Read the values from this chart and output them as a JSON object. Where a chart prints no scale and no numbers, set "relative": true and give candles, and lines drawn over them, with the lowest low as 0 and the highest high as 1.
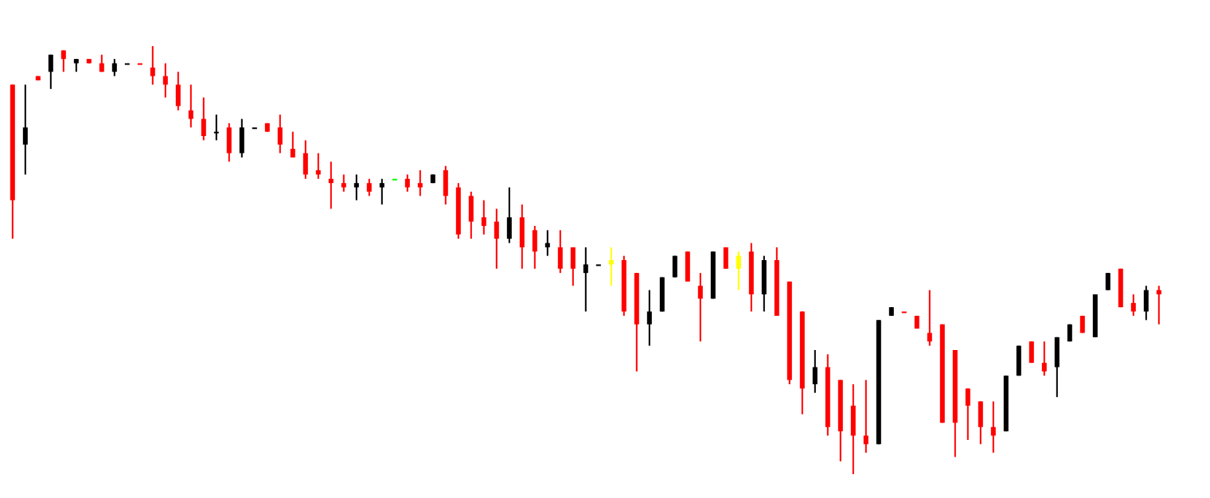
{
  "chart_data": {
    "type": "candlestick",
    "relative": true,
    "categories": [
      null,
      null,
      null,
      null,
      null,
      null,
      null,
      null,
      null,
      null,
      null,
      null,
      null,
      null,
      null,
      null,
      null,
      null,
      null,
      null,
      null,
      null,
      null,
      null,
      null,
      null,
      null,
      null,
      null,
      null,
      null,
      null,
      null,
      null,
      null,
      null,
      null,
      null,
      null,
      null,
      null,
      null,
      null,
      null,
      null,
      null,
      null,
      null,
      null,
      null,
      null,
      null,
      null,
      null,
      null,
      null,
      null,
      null,
      null,
      null,
      null,
      null,
      null,
      null,
      null,
      null,
      null,
      null,
      null,
      null,
      null,
      null,
      null,
      null,
      null,
      null,
      null,
      null,
      null,
      null,
      null,
      null,
      null,
      null,
      null,
      null,
      null,
      null,
      null,
      null,
      null
    ],
    "ohlc": [
      [
        0.91,
        0.91,
        0.55,
        0.64
      ],
      [
        0.77,
        0.91,
        0.7,
        0.81
      ],
      [
        0.93,
        0.93,
        0.92,
        0.92
      ],
      [
        0.94,
        0.98,
        0.9,
        0.98
      ],
      [
        0.99,
        0.99,
        0.94,
        0.97
      ],
      [
        0.96,
        0.97,
        0.94,
        0.97
      ],
      [
        0.97,
        0.97,
        0.96,
        0.96
      ],
      [
        0.96,
        0.98,
        0.94,
        0.94
      ],
      [
        0.94,
        0.97,
        0.93,
        0.96
      ],
      [
        0.96,
        0.96,
        0.96,
        0.96
      ],
      [
        0.96,
        0.96,
        0.96,
        0.96
      ],
      [
        0.95,
        1,
        0.91,
        0.93
      ],
      [
        0.93,
        0.96,
        0.88,
        0.91
      ],
      [
        0.91,
        0.94,
        0.85,
        0.86
      ],
      [
        0.85,
        0.91,
        0.81,
        0.83
      ],
      [
        0.83,
        0.88,
        0.78,
        0.79
      ],
      [
        0.8,
        0.84,
        0.78,
        0.8
      ],
      [
        0.81,
        0.82,
        0.73,
        0.75
      ],
      [
        0.75,
        0.83,
        0.74,
        0.81
      ],
      [
        0.81,
        0.81,
        0.81,
        0.81
      ],
      [
        0.82,
        0.82,
        0.8,
        0.8
      ],
      [
        0.81,
        0.84,
        0.75,
        0.77
      ],
      [
        0.76,
        0.8,
        0.74,
        0.74
      ],
      [
        0.75,
        0.78,
        0.69,
        0.7
      ],
      [
        0.71,
        0.75,
        0.69,
        0.7
      ],
      [
        0.69,
        0.73,
        0.62,
        0.68
      ],
      [
        0.68,
        0.7,
        0.66,
        0.67
      ],
      [
        0.67,
        0.7,
        0.64,
        0.68
      ],
      [
        0.68,
        0.69,
        0.65,
        0.66
      ],
      [
        0.67,
        0.69,
        0.63,
        0.68
      ],
      [
        0.69,
        0.69,
        0.69,
        0.69
      ],
      [
        0.69,
        0.7,
        0.66,
        0.67
      ],
      [
        0.68,
        0.71,
        0.65,
        0.67
      ],
      [
        0.68,
        0.7,
        0.68,
        0.7
      ],
      [
        0.71,
        0.72,
        0.63,
        0.65
      ],
      [
        0.67,
        0.68,
        0.55,
        0.56
      ],
      [
        0.65,
        0.66,
        0.55,
        0.59
      ],
      [
        0.6,
        0.64,
        0.56,
        0.58
      ],
      [
        0.59,
        0.62,
        0.48,
        0.55
      ],
      [
        0.55,
        0.67,
        0.54,
        0.6
      ],
      [
        0.6,
        0.63,
        0.48,
        0.53
      ],
      [
        0.57,
        0.58,
        0.48,
        0.52
      ],
      [
        0.53,
        0.57,
        0.51,
        0.54
      ],
      [
        0.53,
        0.57,
        0.47,
        0.48
      ],
      [
        0.53,
        0.53,
        0.44,
        0.48
      ],
      [
        0.47,
        0.53,
        0.38,
        0.49
      ],
      [
        0.49,
        0.49,
        0.49,
        0.49
      ],
      [
        0.5,
        0.53,
        0.44,
        0.49
      ],
      [
        0.5,
        0.51,
        0.37,
        0.38
      ],
      [
        0.47,
        0.47,
        0.24,
        0.35
      ],
      [
        0.35,
        0.43,
        0.3,
        0.38
      ],
      [
        0.38,
        0.46,
        0.38,
        0.46
      ],
      [
        0.46,
        0.51,
        0.46,
        0.51
      ],
      [
        0.52,
        0.52,
        0.45,
        0.45
      ],
      [
        0.44,
        0.47,
        0.31,
        0.41
      ],
      [
        0.41,
        0.52,
        0.41,
        0.52
      ],
      [
        0.53,
        0.53,
        0.48,
        0.48
      ],
      [
        0.48,
        0.52,
        0.43,
        0.51
      ],
      [
        0.52,
        0.54,
        0.38,
        0.42
      ],
      [
        0.42,
        0.51,
        0.38,
        0.5
      ],
      [
        0.5,
        0.53,
        0.37,
        0.37
      ],
      [
        0.45,
        0.45,
        0.21,
        0.22
      ],
      [
        0.38,
        0.38,
        0.14,
        0.2
      ],
      [
        0.21,
        0.29,
        0.19,
        0.25
      ],
      [
        0.25,
        0.28,
        0.09,
        0.11
      ],
      [
        0.22,
        0.22,
        0.03,
        0.1
      ],
      [
        0.16,
        0.21,
        0,
        0.09
      ],
      [
        0.09,
        0.22,
        0.05,
        0.07
      ],
      [
        0.07,
        0.36,
        0.07,
        0.36
      ],
      [
        0.37,
        0.39,
        0.37,
        0.39
      ],
      [
        0.38,
        0.38,
        0.38,
        0.38
      ],
      [
        0.37,
        0.37,
        0.34,
        0.34
      ],
      [
        0.33,
        0.43,
        0.3,
        0.31
      ],
      [
        0.35,
        0.35,
        0.12,
        0.12
      ],
      [
        0.29,
        0.29,
        0.04,
        0.12
      ],
      [
        0.2,
        0.2,
        0.08,
        0.16
      ],
      [
        0.17,
        0.17,
        0.07,
        0.11
      ],
      [
        0.11,
        0.17,
        0.05,
        0.09
      ],
      [
        0.1,
        0.23,
        0.1,
        0.23
      ],
      [
        0.23,
        0.3,
        0.23,
        0.3
      ],
      [
        0.31,
        0.31,
        0.26,
        0.26
      ],
      [
        0.26,
        0.31,
        0.23,
        0.24
      ],
      [
        0.25,
        0.32,
        0.18,
        0.32
      ],
      [
        0.31,
        0.35,
        0.31,
        0.35
      ],
      [
        0.37,
        0.37,
        0.33,
        0.33
      ],
      [
        0.32,
        0.42,
        0.32,
        0.42
      ],
      [
        0.43,
        0.47,
        0.43,
        0.47
      ],
      [
        0.48,
        0.48,
        0.39,
        0.39
      ],
      [
        0.4,
        0.42,
        0.37,
        0.38
      ],
      [
        0.38,
        0.44,
        0.36,
        0.43
      ],
      [
        0.43,
        0.44,
        0.35,
        0.42
      ]
    ],
    "colors": [
      "#ff0000",
      "#000000",
      "#ff0000",
      "#000000",
      "#ff0000",
      "#000000",
      "#ff0000",
      "#ff0000",
      "#000000",
      "#000000",
      "#ff0000",
      "#ff0000",
      "#ff0000",
      "#ff0000",
      "#ff0000",
      "#ff0000",
      "#000000",
      "#ff0000",
      "#000000",
      "#000000",
      "#ff0000",
      "#ff0000",
      "#ff0000",
      "#ff0000",
      "#ff0000",
      "#ff0000",
      "#ff0000",
      "#000000",
      "#ff0000",
      "#000000",
      "#00ff00",
      "#ff0000",
      "#ff0000",
      "#000000",
      "#ff0000",
      "#ff0000",
      "#ff0000",
      "#ff0000",
      "#ff0000",
      "#000000",
      "#ff0000",
      "#ff0000",
      "#000000",
      "#ff0000",
      "#ff0000",
      "#000000",
      "#000000",
      "#ffff00",
      "#ff0000",
      "#ff0000",
      "#000000",
      "#000000",
      "#000000",
      "#ff0000",
      "#ff0000",
      "#000000",
      "#ff0000",
      "#ffff00",
      "#ff0000",
      "#000000",
      "#ff0000",
      "#ff0000",
      "#ff0000",
      "#000000",
      "#ff0000",
      "#ff0000",
      "#ff0000",
      "#ff0000",
      "#000000",
      "#000000",
      "#ff0000",
      "#ff0000",
      "#ff0000",
      "#ff0000",
      "#ff0000",
      "#ff0000",
      "#ff0000",
      "#ff0000",
      "#000000",
      "#000000",
      "#ff0000",
      "#ff0000",
      "#000000",
      "#000000",
      "#ff0000",
      "#000000",
      "#000000",
      "#ff0000",
      "#ff0000",
      "#000000",
      "#ff0000"
    ]
  }
}
